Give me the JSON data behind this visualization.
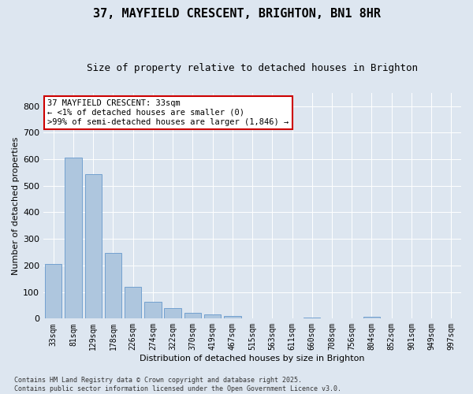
{
  "title": "37, MAYFIELD CRESCENT, BRIGHTON, BN1 8HR",
  "subtitle": "Size of property relative to detached houses in Brighton",
  "xlabel": "Distribution of detached houses by size in Brighton",
  "ylabel": "Number of detached properties",
  "categories": [
    "33sqm",
    "81sqm",
    "129sqm",
    "178sqm",
    "226sqm",
    "274sqm",
    "322sqm",
    "370sqm",
    "419sqm",
    "467sqm",
    "515sqm",
    "563sqm",
    "611sqm",
    "660sqm",
    "708sqm",
    "756sqm",
    "804sqm",
    "852sqm",
    "901sqm",
    "949sqm",
    "997sqm"
  ],
  "values": [
    205,
    605,
    545,
    248,
    120,
    62,
    40,
    22,
    17,
    10,
    0,
    0,
    0,
    5,
    0,
    0,
    7,
    0,
    0,
    0,
    0
  ],
  "bar_color": "#aec6de",
  "bar_edge_color": "#6699cc",
  "annotation_text": "37 MAYFIELD CRESCENT: 33sqm\n← <1% of detached houses are smaller (0)\n>99% of semi-detached houses are larger (1,846) →",
  "annotation_box_facecolor": "#ffffff",
  "annotation_box_edgecolor": "#cc0000",
  "ylim": [
    0,
    850
  ],
  "yticks": [
    0,
    100,
    200,
    300,
    400,
    500,
    600,
    700,
    800
  ],
  "background_color": "#dde6f0",
  "plot_background_color": "#dde6f0",
  "footer_text": "Contains HM Land Registry data © Crown copyright and database right 2025.\nContains public sector information licensed under the Open Government Licence v3.0.",
  "title_fontsize": 11,
  "subtitle_fontsize": 9,
  "axis_label_fontsize": 8,
  "tick_fontsize": 7,
  "annotation_fontsize": 7.5,
  "footer_fontsize": 6
}
